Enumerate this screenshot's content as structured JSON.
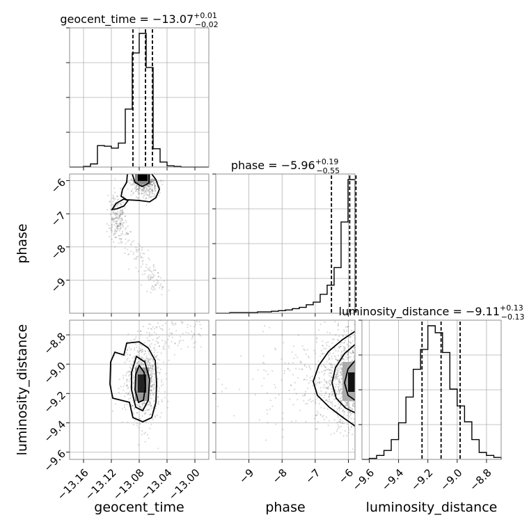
{
  "chart_data": {
    "type": "corner",
    "parameters": [
      "geocent_time",
      "phase",
      "luminosity_distance"
    ],
    "ranges": {
      "geocent_time": [
        -13.18,
        -12.98
      ],
      "phase": [
        -10.0,
        -5.8
      ],
      "luminosity_distance": [
        -9.65,
        -8.7
      ]
    },
    "ticks": {
      "geocent_time": [
        -13.16,
        -13.12,
        -13.08,
        -13.04,
        -13.0
      ],
      "phase": [
        -9,
        -8,
        -7,
        -6
      ],
      "luminosity_distance": [
        -9.6,
        -9.4,
        -9.2,
        -9.0,
        -8.8
      ]
    },
    "tick_labels": {
      "geocent_time": [
        "−13.16",
        "−13.12",
        "−13.08",
        "−13.04",
        "−13.00"
      ],
      "phase": [
        "−9",
        "−8",
        "−7",
        "−6"
      ],
      "luminosity_distance": [
        "−9.6",
        "−9.4",
        "−9.2",
        "−9.0",
        "−8.8"
      ]
    },
    "axis_labels": {
      "geocent_time": "geocent_time",
      "phase": "phase",
      "luminosity_distance": "luminosity_distance"
    },
    "titles": {
      "geocent_time": {
        "name": "geocent_time",
        "median": "−13.07",
        "plus": "+0.01",
        "minus": "−0.02"
      },
      "phase": {
        "name": "phase",
        "median": "−5.96",
        "plus": "+0.19",
        "minus": "−0.55"
      },
      "luminosity_distance": {
        "name": "luminosity_distance",
        "median": "−9.11",
        "plus": "+0.13",
        "minus": "−0.13"
      }
    },
    "quantiles": {
      "geocent_time": [
        -13.089,
        -13.071,
        -13.061
      ],
      "phase": [
        -6.51,
        -5.96,
        -5.77
      ],
      "luminosity_distance": [
        -9.24,
        -9.11,
        -8.98
      ]
    },
    "histograms": {
      "geocent_time": {
        "edges": [
          -13.18,
          -13.17,
          -13.16,
          -13.15,
          -13.14,
          -13.13,
          -13.12,
          -13.11,
          -13.1,
          -13.09,
          -13.08,
          -13.07,
          -13.06,
          -13.05,
          -13.04,
          -13.03,
          -13.02,
          -13.01,
          -13.0,
          -12.99,
          -12.98
        ],
        "counts": [
          0,
          0,
          1,
          5,
          34,
          33,
          30,
          38,
          92,
          181,
          212,
          158,
          29,
          8,
          2,
          1,
          0,
          0,
          0,
          0
        ]
      },
      "phase": {
        "edges": [
          -10.0,
          -9.79,
          -9.58,
          -9.37,
          -9.16,
          -8.95,
          -8.74,
          -8.53,
          -8.32,
          -8.11,
          -7.9,
          -7.69,
          -7.48,
          -7.27,
          -7.06,
          -6.85,
          -6.64,
          -6.43,
          -6.22,
          -6.01,
          -5.8
        ],
        "counts": [
          0,
          0,
          1,
          1,
          1,
          1,
          2,
          2,
          3,
          4,
          5,
          7,
          9,
          13,
          17,
          29,
          43,
          70,
          140,
          205
        ]
      },
      "luminosity_distance": {
        "edges": [
          -9.65,
          -9.6,
          -9.55,
          -9.5,
          -9.45,
          -9.4,
          -9.35,
          -9.3,
          -9.25,
          -9.2,
          -9.15,
          -9.1,
          -9.05,
          -9.0,
          -8.95,
          -8.9,
          -8.85,
          -8.8,
          -8.75,
          -8.7
        ],
        "counts": [
          0,
          1,
          4,
          9,
          20,
          37,
          63,
          91,
          111,
          135,
          128,
          108,
          71,
          54,
          38,
          20,
          7,
          4,
          2
        ]
      }
    },
    "grid": true
  }
}
